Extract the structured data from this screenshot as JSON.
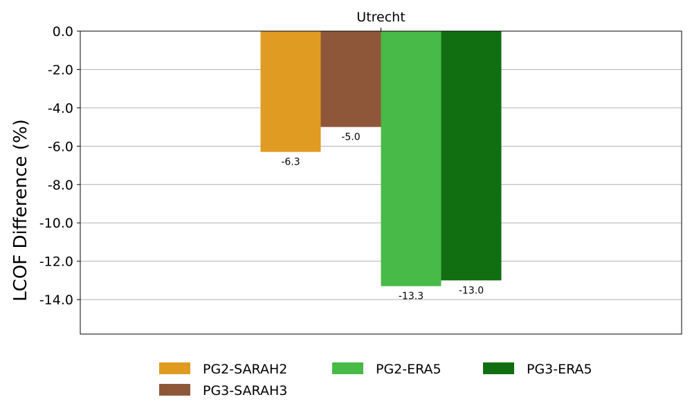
{
  "chart_data": {
    "type": "bar",
    "categories": [
      "Utrecht"
    ],
    "series": [
      {
        "name": "PG2-SARAH2",
        "color": "#e09b23",
        "values": [
          -6.3
        ],
        "value_labels": [
          "-6.3"
        ]
      },
      {
        "name": "PG3-SARAH3",
        "color": "#8f573a",
        "values": [
          -5.0
        ],
        "value_labels": [
          "-5.0"
        ]
      },
      {
        "name": "PG2-ERA5",
        "color": "#47ba47",
        "values": [
          -13.3
        ],
        "value_labels": [
          "-13.3"
        ]
      },
      {
        "name": "PG3-ERA5",
        "color": "#116e11",
        "values": [
          -13.0
        ],
        "value_labels": [
          "-13.0"
        ]
      }
    ],
    "title": "",
    "xlabel": "",
    "ylabel": "LCOF Difference (%)",
    "ylim": [
      -15.8,
      0
    ],
    "yticks": [
      0,
      -2,
      -4,
      -6,
      -8,
      -10,
      -12,
      -14
    ],
    "ytick_labels": [
      "0.0",
      "-2.0",
      "-4.0",
      "-6.0",
      "-8.0",
      "-10.0",
      "-12.0",
      "-14.0"
    ],
    "xaxis_position": "top",
    "grid": "horizontal",
    "legend_position": "bottom-center"
  }
}
